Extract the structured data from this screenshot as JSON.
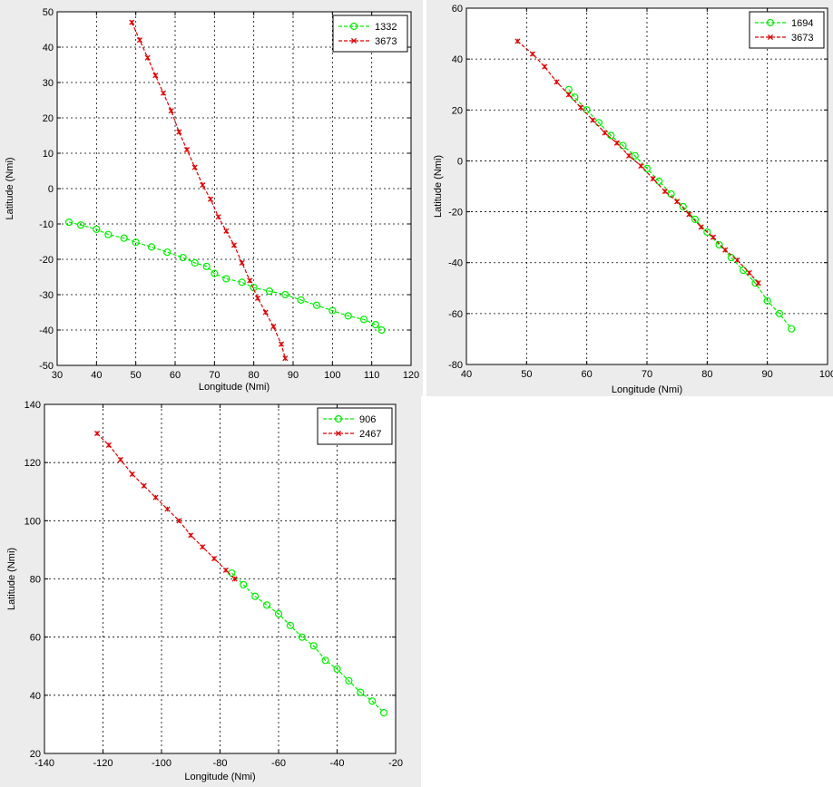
{
  "chart_data": [
    {
      "type": "line",
      "xlabel": "Longitude (Nmi)",
      "ylabel": "Latitude (Nmi)",
      "xlim": [
        30,
        120
      ],
      "ylim": [
        -50,
        50
      ],
      "xticks": [
        30,
        40,
        50,
        60,
        70,
        80,
        90,
        100,
        110,
        120
      ],
      "yticks": [
        -50,
        -40,
        -30,
        -20,
        -10,
        0,
        10,
        20,
        30,
        40,
        50
      ],
      "grid": true,
      "legend_position": "top-right",
      "series": [
        {
          "name": "1332",
          "color": "#00ee00",
          "marker": "circle",
          "x": [
            33,
            36,
            40,
            43,
            47,
            50,
            54,
            58,
            62,
            65,
            68,
            70,
            73,
            77,
            80,
            84,
            88,
            92,
            96,
            100,
            104,
            108,
            111,
            112.5
          ],
          "y": [
            -9.5,
            -10.3,
            -11.5,
            -13,
            -14,
            -15.2,
            -16.5,
            -18,
            -19.5,
            -21,
            -22,
            -24,
            -25.5,
            -26.5,
            -28,
            -29,
            -30,
            -31.5,
            -33,
            -34.5,
            -36,
            -37,
            -38.5,
            -40
          ]
        },
        {
          "name": "3673",
          "color": "#dd0000",
          "marker": "x",
          "x": [
            49,
            51,
            53,
            55,
            57,
            59,
            61,
            63,
            65,
            67,
            69,
            71,
            73,
            75,
            77,
            79,
            81,
            83,
            85,
            87,
            88
          ],
          "y": [
            47,
            42,
            37,
            32,
            27,
            22,
            16,
            11,
            6,
            1,
            -3,
            -8,
            -12,
            -16,
            -21,
            -26,
            -31,
            -35,
            -39,
            -44,
            -48
          ]
        }
      ]
    },
    {
      "type": "line",
      "xlabel": "Longitude (Nmi)",
      "ylabel": "Latitude (Nmi)",
      "xlim": [
        40,
        100
      ],
      "ylim": [
        -80,
        60
      ],
      "xticks": [
        40,
        50,
        60,
        70,
        80,
        90,
        100
      ],
      "yticks": [
        -80,
        -60,
        -40,
        -20,
        0,
        20,
        40,
        60
      ],
      "grid": true,
      "legend_position": "top-right",
      "series": [
        {
          "name": "1694",
          "color": "#00ee00",
          "marker": "circle",
          "x": [
            57,
            58,
            60,
            62,
            64,
            66,
            68,
            70,
            72,
            74,
            76,
            78,
            80,
            82,
            84,
            86,
            88,
            90,
            92,
            94
          ],
          "y": [
            28,
            25,
            20,
            15,
            10,
            6,
            2,
            -3,
            -8,
            -13,
            -18,
            -23,
            -28,
            -33,
            -38,
            -43,
            -48,
            -55,
            -60,
            -66
          ]
        },
        {
          "name": "3673",
          "color": "#dd0000",
          "marker": "x",
          "x": [
            48.5,
            51,
            53,
            55,
            57,
            59,
            61,
            63,
            65,
            67,
            69,
            71,
            73,
            75,
            77,
            79,
            81,
            83,
            85,
            87,
            88.5
          ],
          "y": [
            47,
            42,
            37,
            31,
            26,
            21,
            16,
            11,
            7,
            2,
            -2,
            -7,
            -12,
            -16,
            -21,
            -26,
            -30,
            -35,
            -39,
            -44,
            -48
          ]
        }
      ]
    },
    {
      "type": "line",
      "xlabel": "Longitude (Nmi)",
      "ylabel": "Latitude (Nmi)",
      "xlim": [
        -140,
        -20
      ],
      "ylim": [
        20,
        140
      ],
      "xticks": [
        -140,
        -120,
        -100,
        -80,
        -60,
        -40,
        -20
      ],
      "yticks": [
        20,
        40,
        60,
        80,
        100,
        120,
        140
      ],
      "grid": true,
      "legend_position": "top-right",
      "series": [
        {
          "name": "906",
          "color": "#00ee00",
          "marker": "circle",
          "x": [
            -76,
            -72,
            -68,
            -64,
            -60,
            -56,
            -52,
            -48,
            -44,
            -40,
            -36,
            -32,
            -28,
            -24
          ],
          "y": [
            82,
            78,
            74,
            71,
            68,
            64,
            60,
            57,
            52,
            49,
            45,
            41,
            38,
            34
          ]
        },
        {
          "name": "2467",
          "color": "#dd0000",
          "marker": "x",
          "x": [
            -122,
            -118,
            -114,
            -110,
            -106,
            -102,
            -98,
            -94,
            -90,
            -86,
            -82,
            -78,
            -75
          ],
          "y": [
            130,
            126,
            121,
            116,
            112,
            108,
            104,
            100,
            95,
            91,
            87,
            83,
            80
          ]
        }
      ]
    }
  ]
}
